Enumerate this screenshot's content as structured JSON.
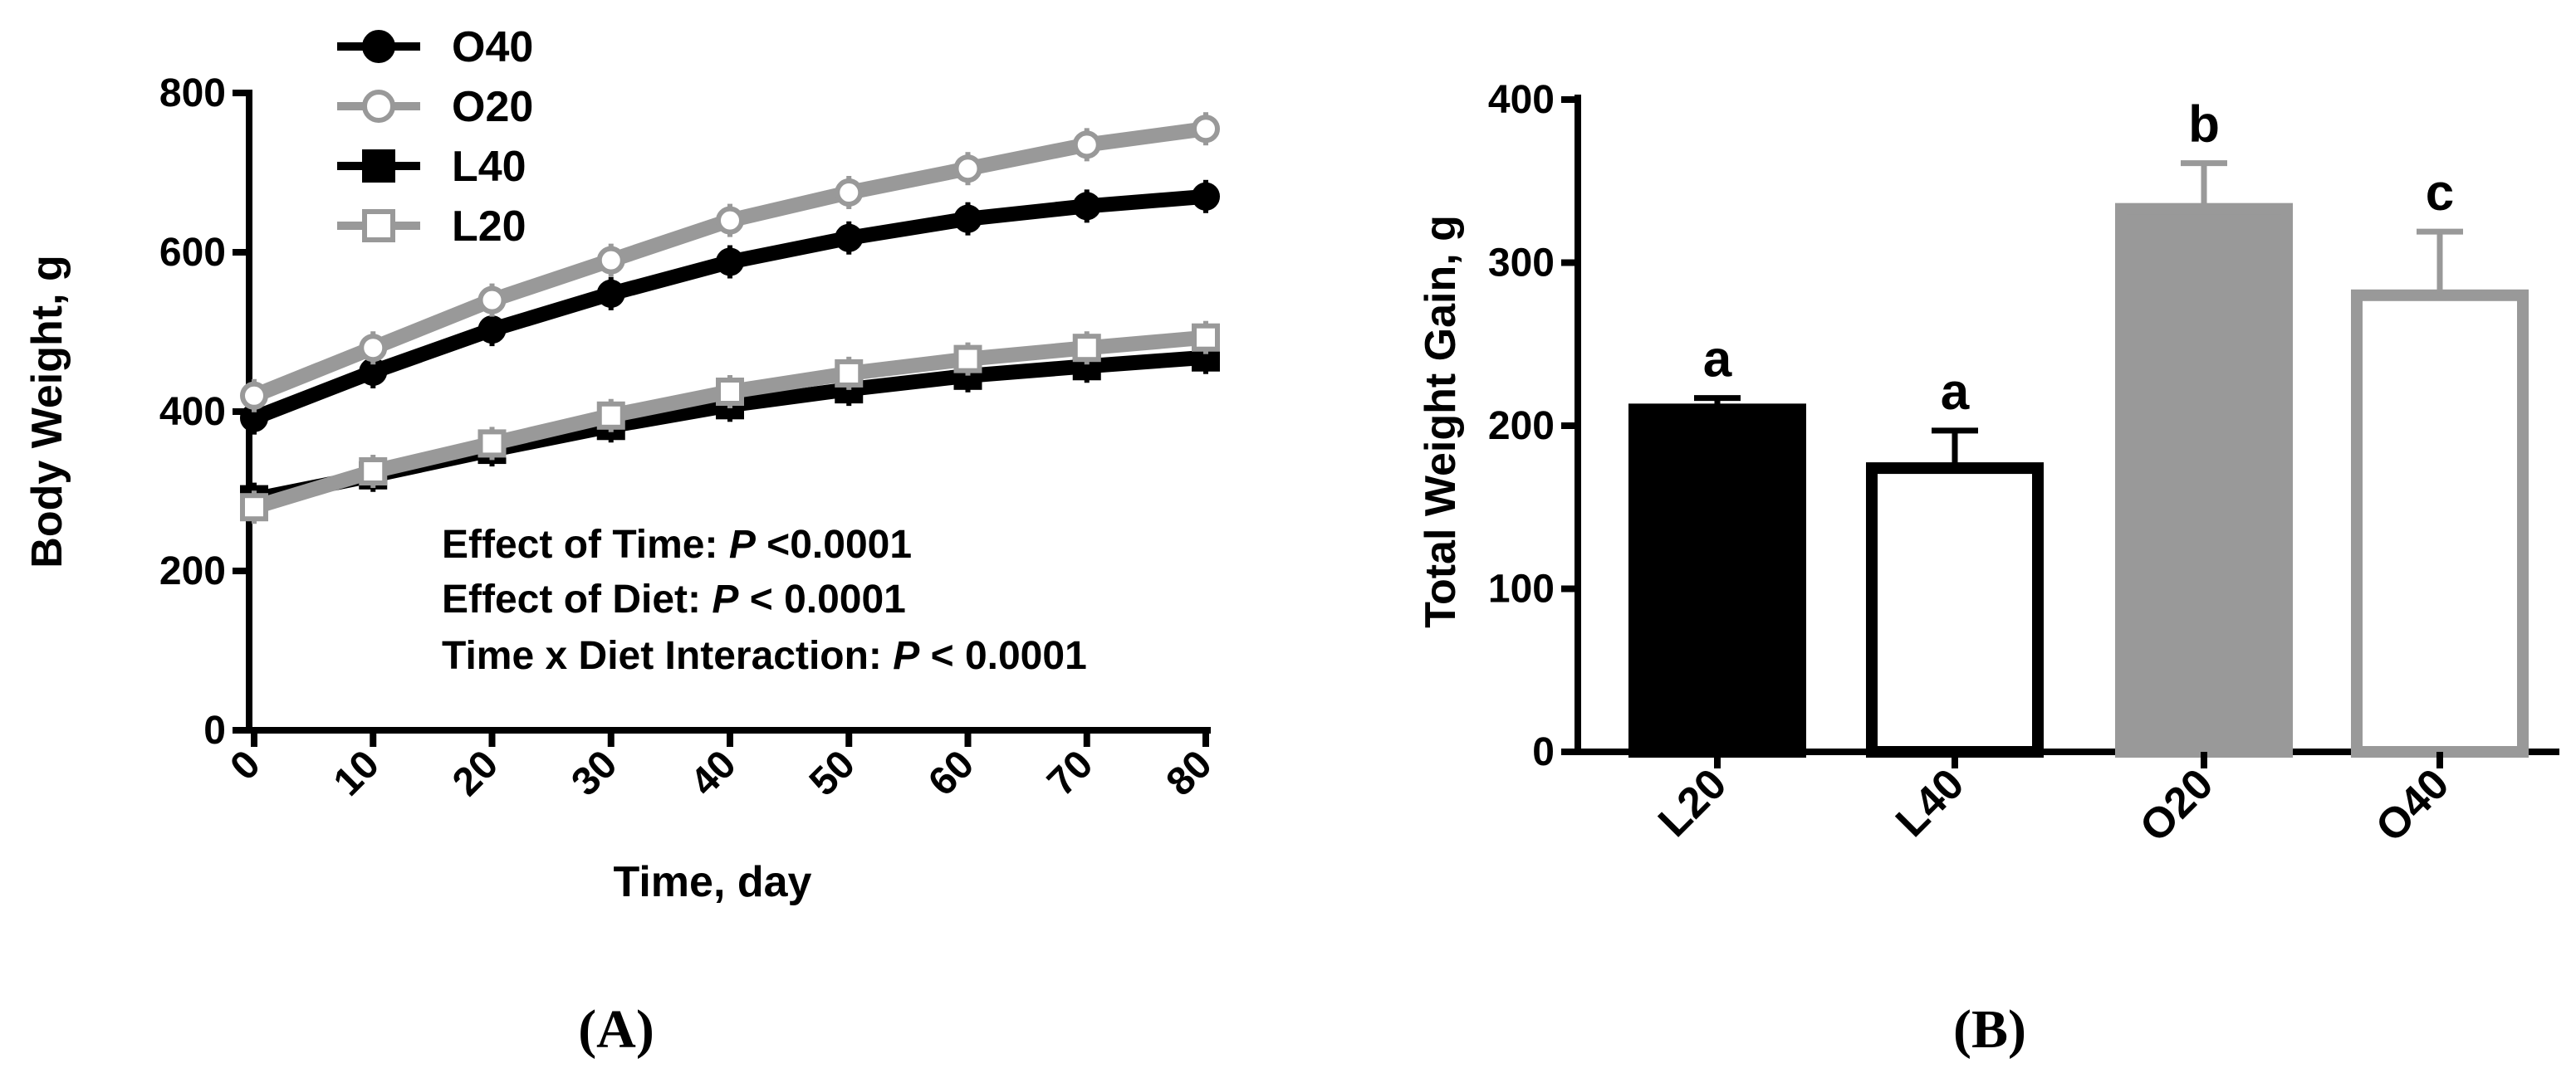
{
  "panels": {
    "a_label": "(A)",
    "b_label": "(B)"
  },
  "chart_data": [
    {
      "type": "line",
      "xlabel": "Time, day",
      "ylabel": "Body Weight, g",
      "xlim": [
        0,
        80
      ],
      "ylim": [
        0,
        800
      ],
      "xticks": [
        0,
        10,
        20,
        30,
        40,
        50,
        60,
        70,
        80
      ],
      "yticks": [
        0,
        200,
        400,
        600,
        800
      ],
      "grid": false,
      "legend_position": "top-left",
      "x": [
        0,
        10,
        20,
        30,
        40,
        50,
        60,
        70,
        80
      ],
      "series": [
        {
          "name": "O40",
          "color": "#000000",
          "marker": "filled-circle",
          "values": [
            392,
            450,
            503,
            548,
            588,
            618,
            642,
            658,
            670
          ]
        },
        {
          "name": "O20",
          "color": "#999999",
          "marker": "open-circle",
          "values": [
            420,
            480,
            540,
            590,
            640,
            675,
            705,
            735,
            755
          ]
        },
        {
          "name": "L40",
          "color": "#000000",
          "marker": "filled-square",
          "values": [
            290,
            320,
            352,
            382,
            408,
            428,
            445,
            457,
            468
          ]
        },
        {
          "name": "L20",
          "color": "#999999",
          "marker": "open-square",
          "values": [
            280,
            325,
            360,
            395,
            425,
            448,
            466,
            480,
            493
          ]
        }
      ],
      "annotations": [
        {
          "prefix": "Effect of Time: ",
          "p": "P",
          "suffix": " <0.0001"
        },
        {
          "prefix": "Effect of Diet: ",
          "p": "P",
          "suffix": " < 0.0001"
        },
        {
          "prefix": "Time x Diet Interaction: ",
          "p": "P",
          "suffix": " < 0.0001"
        }
      ]
    },
    {
      "type": "bar",
      "xlabel": "",
      "ylabel": "Total Weight Gain, g",
      "ylim": [
        0,
        400
      ],
      "yticks": [
        0,
        100,
        200,
        300,
        400
      ],
      "grid": false,
      "categories": [
        "L20",
        "L40",
        "O20",
        "O40"
      ],
      "values": [
        210,
        174,
        333,
        280
      ],
      "errors": [
        7,
        23,
        28,
        39
      ],
      "significance": [
        "a",
        "a",
        "b",
        "c"
      ],
      "fills": [
        "#000000",
        "#ffffff",
        "#999999",
        "#ffffff"
      ],
      "strokes": [
        "#000000",
        "#000000",
        "#999999",
        "#999999"
      ]
    }
  ]
}
